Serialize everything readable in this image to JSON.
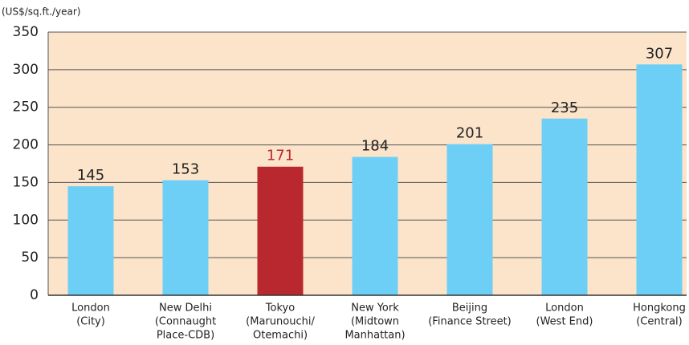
{
  "chart_data": {
    "type": "bar",
    "y_axis_label": "(US$/sq.ft./year)",
    "categories": [
      [
        "London",
        "(City)"
      ],
      [
        "New Delhi",
        "(Connaught",
        "Place-CDB)"
      ],
      [
        "Tokyo",
        "(Marunouchi/",
        "Otemachi)"
      ],
      [
        "New York",
        "(Midtown",
        "Manhattan)"
      ],
      [
        "Beijing",
        "(Finance Street)"
      ],
      [
        "London",
        "(West End)"
      ],
      [
        "Hongkong",
        "(Central)"
      ]
    ],
    "values": [
      145,
      153,
      171,
      184,
      201,
      235,
      307
    ],
    "colors": [
      "#6dcff6",
      "#6dcff6",
      "#b8282e",
      "#6dcff6",
      "#6dcff6",
      "#6dcff6",
      "#6dcff6"
    ],
    "value_label_colors": [
      "#222222",
      "#222222",
      "#b8282e",
      "#222222",
      "#222222",
      "#222222",
      "#222222"
    ],
    "background": "#fce4ca",
    "ylim": [
      0,
      350
    ],
    "yticks": [
      0,
      50,
      100,
      150,
      200,
      250,
      300,
      350
    ],
    "grid": true
  }
}
